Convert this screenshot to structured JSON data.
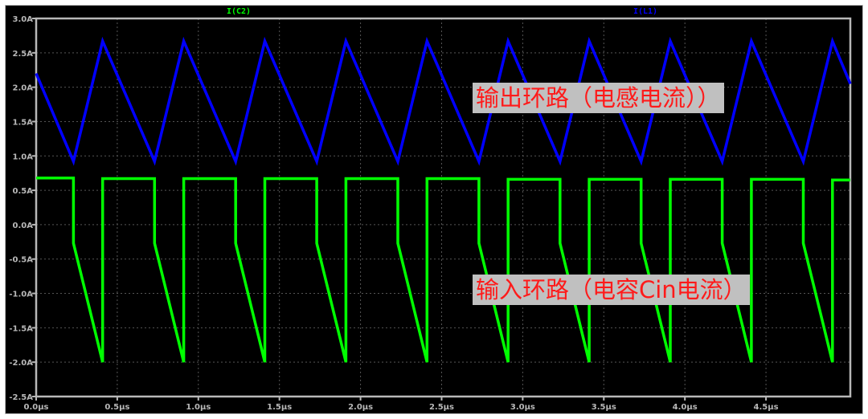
{
  "chart_data": {
    "type": "line",
    "xlabel": "",
    "ylabel": "",
    "xlim": [
      0,
      5.02
    ],
    "ylim": [
      -2.5,
      3.0
    ],
    "grid": true,
    "background": "#000000",
    "x_ticks": [
      "0.0µs",
      "0.5µs",
      "1.0µs",
      "1.5µs",
      "2.0µs",
      "2.5µs",
      "3.0µs",
      "3.5µs",
      "4.0µs",
      "4.5µs"
    ],
    "x_tick_values": [
      0,
      0.5,
      1.0,
      1.5,
      2.0,
      2.5,
      3.0,
      3.5,
      4.0,
      4.5
    ],
    "y_ticks": [
      "3.0A",
      "2.5A",
      "2.0A",
      "1.5A",
      "1.0A",
      "0.5A",
      "0.0A",
      "-0.5A",
      "-1.0A",
      "-1.5A",
      "-2.0A",
      "-2.5A"
    ],
    "y_tick_values": [
      3.0,
      2.5,
      2.0,
      1.5,
      1.0,
      0.5,
      0.0,
      -0.5,
      -1.0,
      -1.5,
      -2.0,
      -2.5
    ],
    "legend_placement": "top",
    "series": [
      {
        "name": "I(C2)",
        "color": "#00ff00",
        "points": [
          [
            0,
            0.68
          ],
          [
            0.23,
            0.68
          ],
          [
            0.23,
            -0.27
          ],
          [
            0.41,
            -2.0
          ],
          [
            0.41,
            0.67
          ],
          [
            0.73,
            0.67
          ],
          [
            0.73,
            -0.27
          ],
          [
            0.91,
            -2.0
          ],
          [
            0.91,
            0.67
          ],
          [
            1.23,
            0.67
          ],
          [
            1.23,
            -0.27
          ],
          [
            1.41,
            -2.0
          ],
          [
            1.41,
            0.67
          ],
          [
            1.73,
            0.67
          ],
          [
            1.73,
            -0.27
          ],
          [
            1.91,
            -2.0
          ],
          [
            1.91,
            0.67
          ],
          [
            2.23,
            0.67
          ],
          [
            2.23,
            -0.27
          ],
          [
            2.41,
            -2.0
          ],
          [
            2.41,
            0.67
          ],
          [
            2.73,
            0.67
          ],
          [
            2.73,
            -0.27
          ],
          [
            2.91,
            -2.0
          ],
          [
            2.91,
            0.66
          ],
          [
            3.23,
            0.66
          ],
          [
            3.23,
            -0.27
          ],
          [
            3.41,
            -2.0
          ],
          [
            3.41,
            0.66
          ],
          [
            3.73,
            0.66
          ],
          [
            3.73,
            -0.27
          ],
          [
            3.91,
            -2.0
          ],
          [
            3.91,
            0.66
          ],
          [
            4.23,
            0.66
          ],
          [
            4.23,
            -0.27
          ],
          [
            4.41,
            -2.0
          ],
          [
            4.41,
            0.66
          ],
          [
            4.73,
            0.66
          ],
          [
            4.73,
            -0.27
          ],
          [
            4.91,
            -2.0
          ],
          [
            4.91,
            0.65
          ],
          [
            5.02,
            0.65
          ]
        ]
      },
      {
        "name": "I(L1)",
        "color": "#0000ff",
        "points": [
          [
            0,
            2.2
          ],
          [
            0.23,
            0.92
          ],
          [
            0.41,
            2.67
          ],
          [
            0.73,
            0.92
          ],
          [
            0.91,
            2.67
          ],
          [
            1.23,
            0.92
          ],
          [
            1.41,
            2.67
          ],
          [
            1.73,
            0.92
          ],
          [
            1.91,
            2.67
          ],
          [
            2.23,
            0.92
          ],
          [
            2.41,
            2.67
          ],
          [
            2.73,
            0.92
          ],
          [
            2.91,
            2.67
          ],
          [
            3.23,
            0.92
          ],
          [
            3.41,
            2.67
          ],
          [
            3.73,
            0.92
          ],
          [
            3.91,
            2.67
          ],
          [
            4.23,
            0.92
          ],
          [
            4.41,
            2.67
          ],
          [
            4.73,
            0.92
          ],
          [
            4.91,
            2.67
          ],
          [
            5.02,
            2.05
          ]
        ]
      }
    ],
    "annotations": [
      {
        "text": "输出环路（电感电流））",
        "color": "#ff1a1a",
        "background": "#c0c0c0"
      },
      {
        "text": "输入环路（电容Cin电流）",
        "color": "#ff1a1a",
        "background": "#c0c0c0"
      }
    ]
  }
}
